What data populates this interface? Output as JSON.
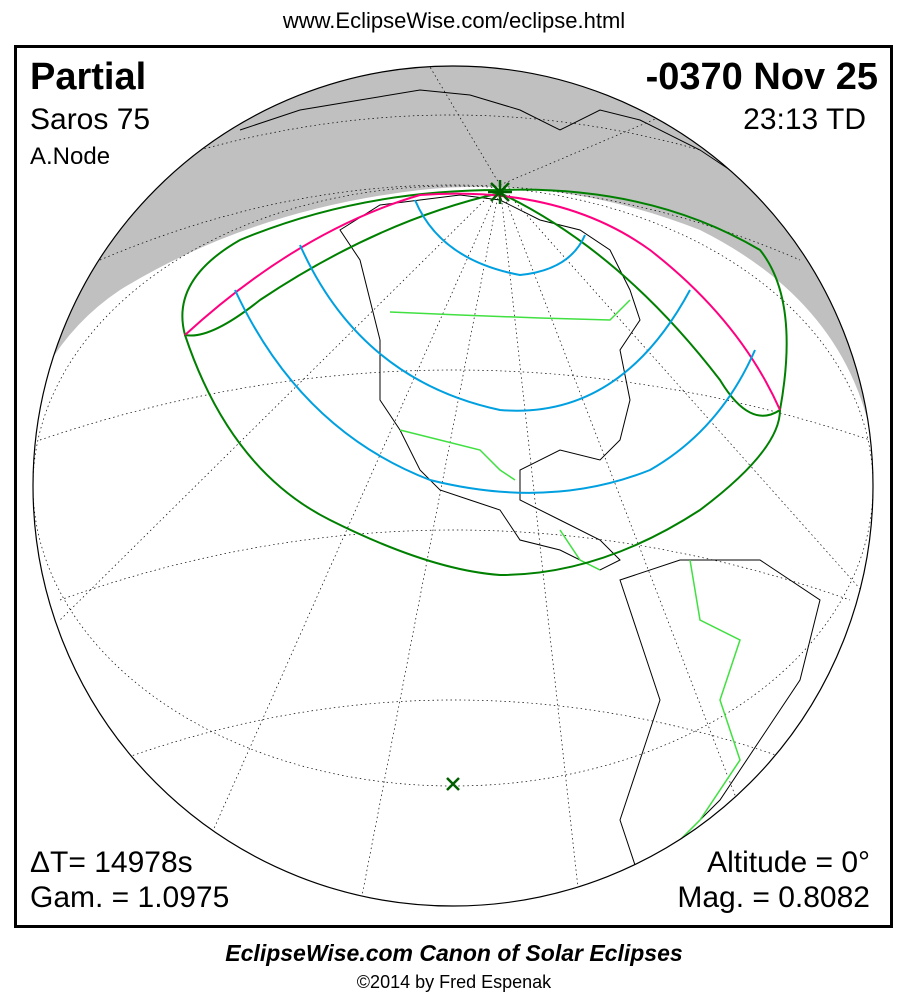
{
  "header": {
    "url": "www.EclipseWise.com/eclipse.html"
  },
  "eclipse": {
    "type": "Partial",
    "date": "-0370 Nov 25",
    "saros": "Saros  75",
    "time": "23:13 TD",
    "node": "A.Node",
    "delta_t": "ΔT=  14978s",
    "gamma": "Gam. = 1.0975",
    "altitude": "Altitude =  0°",
    "magnitude": "Mag. = 0.8082"
  },
  "footer": {
    "canon": "EclipseWise.com Canon of Solar Eclipses",
    "copyright": "©2014 by Fred Espenak"
  },
  "colors": {
    "night": "#c0c0c0",
    "penumbra_limit": "#008000",
    "max_at_sunrise_sunset": "#ff0080",
    "magnitude_lines": "#00a0e0",
    "borders": "#40e040"
  },
  "markers": {
    "greatest_eclipse": "star-icon",
    "subsolar_point": "x-icon"
  }
}
